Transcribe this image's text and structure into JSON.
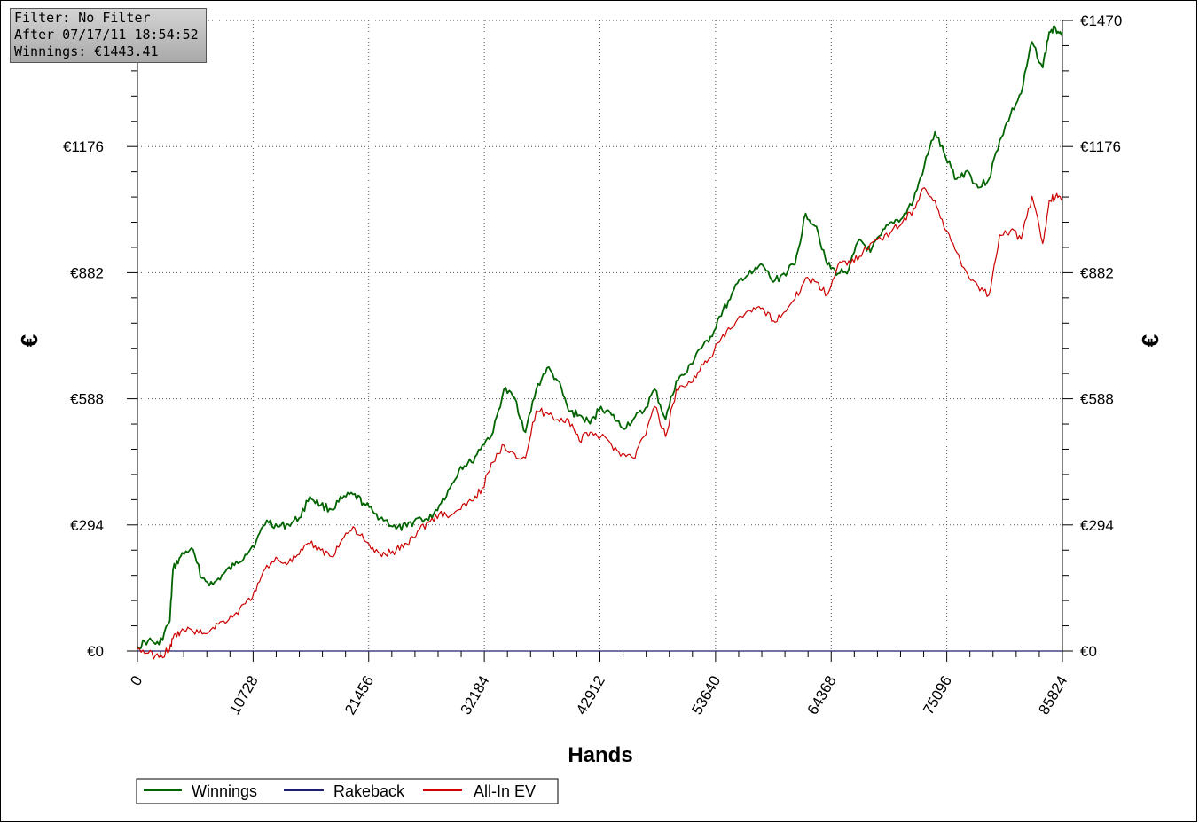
{
  "info_box": {
    "filter": "Filter: No Filter",
    "after": "After 07/17/11 18:54:52",
    "winnings": "Winnings: €1443.41"
  },
  "chart_data": {
    "type": "line",
    "xlabel": "Hands",
    "ylabel": "€",
    "xlim": [
      0,
      85824
    ],
    "ylim": [
      0,
      1470
    ],
    "x_ticks": [
      0,
      10728,
      21456,
      32184,
      42912,
      53640,
      64368,
      75096,
      85824
    ],
    "y_ticks": [
      0,
      294,
      588,
      882,
      1176,
      1470
    ],
    "y_tick_labels": [
      "€0",
      "€294",
      "€588",
      "€882",
      "€1176",
      "€1470"
    ],
    "grid": true,
    "legend_position": "bottom-left",
    "x": [
      0,
      1000,
      2000,
      3000,
      3300,
      4000,
      5000,
      6000,
      7000,
      8000,
      9000,
      10000,
      11000,
      12000,
      13000,
      14000,
      15000,
      16000,
      17000,
      18000,
      19000,
      20000,
      21000,
      22000,
      23000,
      24000,
      25000,
      26000,
      27000,
      28000,
      29000,
      30000,
      31000,
      32000,
      33000,
      34000,
      35000,
      36000,
      37000,
      38000,
      39000,
      40000,
      41000,
      42000,
      43000,
      44000,
      45000,
      46000,
      47000,
      48000,
      49000,
      50000,
      51000,
      52000,
      53000,
      54000,
      55000,
      56000,
      57000,
      58000,
      59000,
      60000,
      61000,
      62000,
      63000,
      64000,
      65000,
      66000,
      67000,
      68000,
      69000,
      70000,
      71000,
      72000,
      73000,
      74000,
      75000,
      76000,
      77000,
      78000,
      79000,
      80000,
      81000,
      82000,
      83000,
      84000,
      84600,
      85200,
      85824
    ],
    "series": [
      {
        "name": "Winnings",
        "color": "#006400",
        "values": [
          10,
          25,
          15,
          70,
          190,
          220,
          240,
          170,
          155,
          180,
          200,
          225,
          255,
          305,
          290,
          295,
          310,
          360,
          340,
          330,
          355,
          365,
          345,
          320,
          305,
          285,
          290,
          310,
          305,
          340,
          380,
          430,
          440,
          480,
          510,
          610,
          590,
          510,
          610,
          660,
          630,
          560,
          550,
          530,
          570,
          550,
          520,
          540,
          560,
          610,
          540,
          630,
          650,
          700,
          720,
          780,
          820,
          870,
          880,
          900,
          860,
          880,
          900,
          1020,
          990,
          900,
          880,
          890,
          960,
          930,
          970,
          1000,
          1010,
          1050,
          1130,
          1210,
          1150,
          1100,
          1120,
          1080,
          1100,
          1190,
          1250,
          1300,
          1420,
          1360,
          1443,
          1450,
          1443
        ]
      },
      {
        "name": "Rakeback",
        "color": "#1f1f6e",
        "values": [
          0,
          0,
          0,
          0,
          0,
          0,
          0,
          0,
          0,
          0,
          0,
          0,
          0,
          0,
          0,
          0,
          0,
          0,
          0,
          0,
          0,
          0,
          0,
          0,
          0,
          0,
          0,
          0,
          0,
          0,
          0,
          0,
          0,
          0,
          0,
          0,
          0,
          0,
          0,
          0,
          0,
          0,
          0,
          0,
          0,
          0,
          0,
          0,
          0,
          0,
          0,
          0,
          0,
          0,
          0,
          0,
          0,
          0,
          0,
          0,
          0,
          0,
          0,
          0,
          0,
          0,
          0,
          0,
          0,
          0,
          0,
          0,
          0,
          0,
          0,
          0,
          0,
          0,
          0,
          0,
          0,
          0,
          0,
          0,
          0,
          0,
          0,
          0,
          0
        ]
      },
      {
        "name": "All-In EV",
        "color": "#cc0000",
        "values": [
          5,
          -5,
          -15,
          5,
          30,
          45,
          50,
          40,
          55,
          70,
          85,
          110,
          140,
          200,
          215,
          205,
          225,
          250,
          235,
          220,
          260,
          290,
          260,
          230,
          225,
          235,
          250,
          280,
          300,
          320,
          315,
          330,
          350,
          380,
          440,
          480,
          460,
          450,
          560,
          555,
          540,
          540,
          490,
          510,
          500,
          480,
          460,
          450,
          500,
          570,
          500,
          610,
          620,
          650,
          680,
          720,
          750,
          780,
          790,
          800,
          770,
          790,
          820,
          870,
          860,
          830,
          900,
          910,
          920,
          950,
          960,
          980,
          1000,
          1030,
          1080,
          1050,
          980,
          930,
          880,
          850,
          830,
          970,
          980,
          960,
          1060,
          950,
          1050,
          1060,
          1050
        ]
      }
    ]
  }
}
